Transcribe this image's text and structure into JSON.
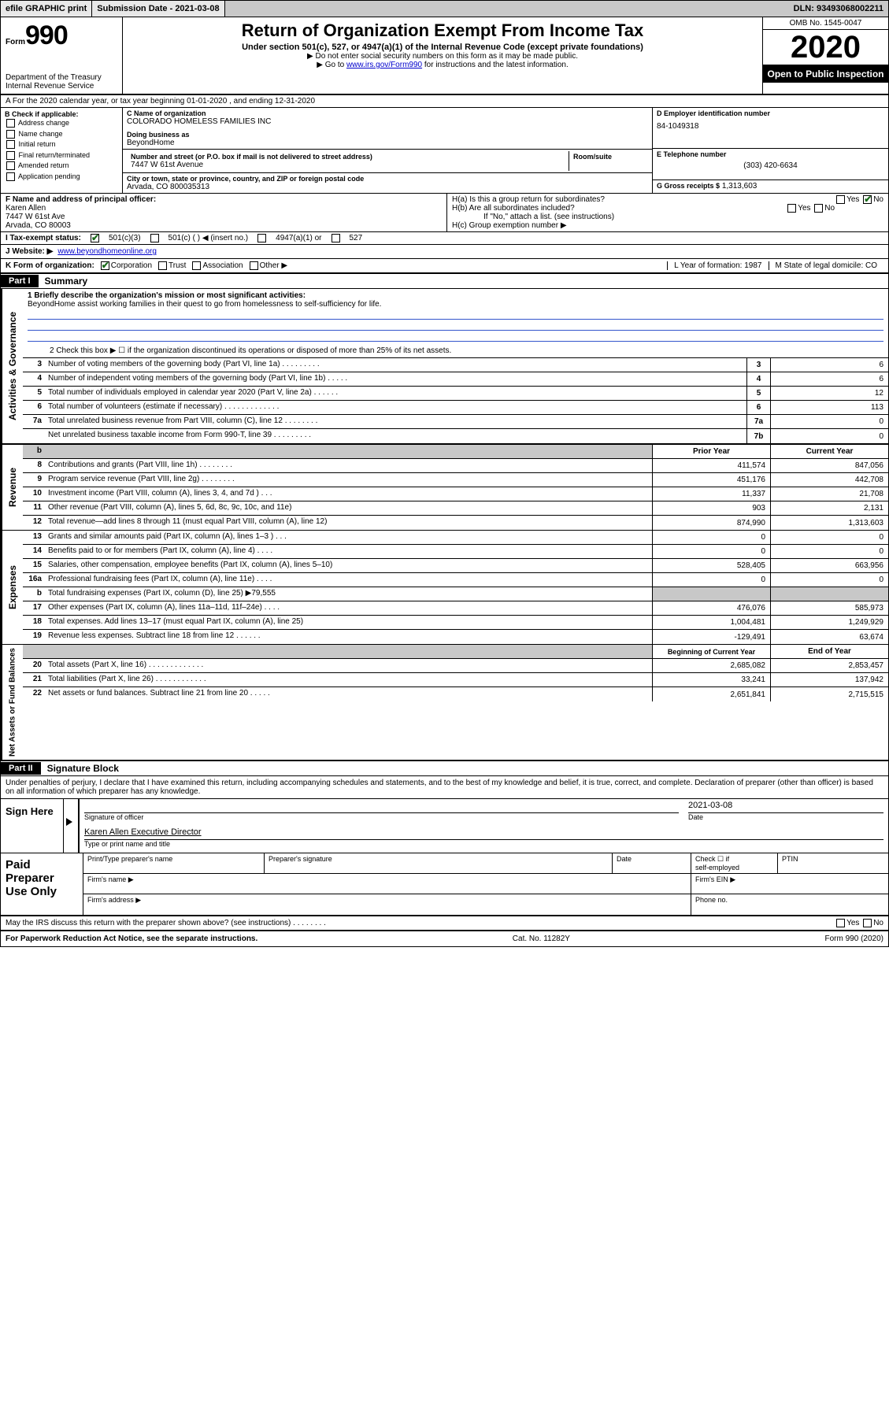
{
  "topbar": {
    "efile": "efile GRAPHIC print",
    "submission_label": "Submission Date - 2021-03-08",
    "dln": "DLN: 93493068002211"
  },
  "header": {
    "form_label": "Form",
    "form_number": "990",
    "dept": "Department of the Treasury\nInternal Revenue Service",
    "title": "Return of Organization Exempt From Income Tax",
    "subtitle": "Under section 501(c), 527, or 4947(a)(1) of the Internal Revenue Code (except private foundations)",
    "note1": "▶ Do not enter social security numbers on this form as it may be made public.",
    "note2_pre": "▶ Go to ",
    "note2_link": "www.irs.gov/Form990",
    "note2_post": " for instructions and the latest information.",
    "omb": "OMB No. 1545-0047",
    "year": "2020",
    "badge": "Open to Public Inspection"
  },
  "row_a": "A For the 2020 calendar year, or tax year beginning 01-01-2020   , and ending 12-31-2020",
  "box_b": {
    "label": "B Check if applicable:",
    "items": [
      "Address change",
      "Name change",
      "Initial return",
      "Final return/terminated",
      "Amended return",
      "Application pending"
    ]
  },
  "box_c": {
    "name_label": "C Name of organization",
    "name": "COLORADO HOMELESS FAMILIES INC",
    "dba_label": "Doing business as",
    "dba": "BeyondHome",
    "addr_label": "Number and street (or P.O. box if mail is not delivered to street address)",
    "room_label": "Room/suite",
    "addr": "7447 W 61st Avenue",
    "city_label": "City or town, state or province, country, and ZIP or foreign postal code",
    "city": "Arvada, CO  800035313"
  },
  "box_d": {
    "label": "D Employer identification number",
    "value": "84-1049318"
  },
  "box_e": {
    "label": "E Telephone number",
    "value": "(303) 420-6634"
  },
  "box_g": {
    "label": "G Gross receipts $",
    "value": "1,313,603"
  },
  "box_f": {
    "label": "F  Name and address of principal officer:",
    "name": "Karen Allen",
    "addr1": "7447 W 61st Ave",
    "addr2": "Arvada, CO  80003"
  },
  "box_h": {
    "a": "H(a)  Is this a group return for subordinates?",
    "b": "H(b)  Are all subordinates included?",
    "note": "If \"No,\" attach a list. (see instructions)",
    "c": "H(c)  Group exemption number ▶"
  },
  "row_i": {
    "label": "I   Tax-exempt status:",
    "opts": [
      "501(c)(3)",
      "501(c) (   ) ◀ (insert no.)",
      "4947(a)(1) or",
      "527"
    ]
  },
  "row_j": {
    "label": "J   Website: ▶",
    "value": "www.beyondhomeonline.org"
  },
  "row_k": {
    "label": "K Form of organization:",
    "opts": [
      "Corporation",
      "Trust",
      "Association",
      "Other ▶"
    ],
    "l": "L Year of formation: 1987",
    "m": "M State of legal domicile: CO"
  },
  "part1": {
    "tag": "Part I",
    "title": "Summary"
  },
  "summary": {
    "l1_label": "1  Briefly describe the organization's mission or most significant activities:",
    "l1_text": "BeyondHome assist working families in their quest to go from homelessness to self-sufficiency for life.",
    "l2": "2   Check this box ▶ ☐  if the organization discontinued its operations or disposed of more than 25% of its net assets.",
    "rows_single": [
      {
        "n": "3",
        "d": "Number of voting members of the governing body (Part VI, line 1a)  .  .  .  .  .  .  .  .  .",
        "b": "3",
        "v": "6"
      },
      {
        "n": "4",
        "d": "Number of independent voting members of the governing body (Part VI, line 1b)  .  .  .  .  .",
        "b": "4",
        "v": "6"
      },
      {
        "n": "5",
        "d": "Total number of individuals employed in calendar year 2020 (Part V, line 2a)  .  .  .  .  .  .",
        "b": "5",
        "v": "12"
      },
      {
        "n": "6",
        "d": "Total number of volunteers (estimate if necessary)  .  .  .  .  .  .  .  .  .  .  .  .  .",
        "b": "6",
        "v": "113"
      },
      {
        "n": "7a",
        "d": "Total unrelated business revenue from Part VIII, column (C), line 12  .  .  .  .  .  .  .  .",
        "b": "7a",
        "v": "0"
      },
      {
        "n": "",
        "d": "Net unrelated business taxable income from Form 990-T, line 39  .  .  .  .  .  .  .  .  .",
        "b": "7b",
        "v": "0"
      }
    ],
    "col_hdr": {
      "b": "b",
      "prior": "Prior Year",
      "current": "Current Year"
    },
    "revenue": [
      {
        "n": "8",
        "d": "Contributions and grants (Part VIII, line 1h)  .  .  .  .  .  .  .  .",
        "p": "411,574",
        "c": "847,056"
      },
      {
        "n": "9",
        "d": "Program service revenue (Part VIII, line 2g)  .  .  .  .  .  .  .  .",
        "p": "451,176",
        "c": "442,708"
      },
      {
        "n": "10",
        "d": "Investment income (Part VIII, column (A), lines 3, 4, and 7d )  .  .  .",
        "p": "11,337",
        "c": "21,708"
      },
      {
        "n": "11",
        "d": "Other revenue (Part VIII, column (A), lines 5, 6d, 8c, 9c, 10c, and 11e)",
        "p": "903",
        "c": "2,131"
      },
      {
        "n": "12",
        "d": "Total revenue—add lines 8 through 11 (must equal Part VIII, column (A), line 12)",
        "p": "874,990",
        "c": "1,313,603"
      }
    ],
    "expenses": [
      {
        "n": "13",
        "d": "Grants and similar amounts paid (Part IX, column (A), lines 1–3 )  .  .  .",
        "p": "0",
        "c": "0"
      },
      {
        "n": "14",
        "d": "Benefits paid to or for members (Part IX, column (A), line 4)  .  .  .  .",
        "p": "0",
        "c": "0"
      },
      {
        "n": "15",
        "d": "Salaries, other compensation, employee benefits (Part IX, column (A), lines 5–10)",
        "p": "528,405",
        "c": "663,956"
      },
      {
        "n": "16a",
        "d": "Professional fundraising fees (Part IX, column (A), line 11e)  .  .  .  .",
        "p": "0",
        "c": "0"
      },
      {
        "n": "b",
        "d": "Total fundraising expenses (Part IX, column (D), line 25) ▶79,555",
        "p": "",
        "c": "",
        "shaded": true
      },
      {
        "n": "17",
        "d": "Other expenses (Part IX, column (A), lines 11a–11d, 11f–24e)  .  .  .  .",
        "p": "476,076",
        "c": "585,973"
      },
      {
        "n": "18",
        "d": "Total expenses. Add lines 13–17 (must equal Part IX, column (A), line 25)",
        "p": "1,004,481",
        "c": "1,249,929"
      },
      {
        "n": "19",
        "d": "Revenue less expenses. Subtract line 18 from line 12  .  .  .  .  .  .",
        "p": "-129,491",
        "c": "63,674"
      }
    ],
    "net_hdr": {
      "prior": "Beginning of Current Year",
      "current": "End of Year"
    },
    "net": [
      {
        "n": "20",
        "d": "Total assets (Part X, line 16)  .  .  .  .  .  .  .  .  .  .  .  .  .",
        "p": "2,685,082",
        "c": "2,853,457"
      },
      {
        "n": "21",
        "d": "Total liabilities (Part X, line 26)  .  .  .  .  .  .  .  .  .  .  .  .",
        "p": "33,241",
        "c": "137,942"
      },
      {
        "n": "22",
        "d": "Net assets or fund balances. Subtract line 21 from line 20  .  .  .  .  .",
        "p": "2,651,841",
        "c": "2,715,515"
      }
    ],
    "side_labels": {
      "gov": "Activities & Governance",
      "rev": "Revenue",
      "exp": "Expenses",
      "net": "Net Assets or Fund Balances"
    }
  },
  "part2": {
    "tag": "Part II",
    "title": "Signature Block"
  },
  "perjury": "Under penalties of perjury, I declare that I have examined this return, including accompanying schedules and statements, and to the best of my knowledge and belief, it is true, correct, and complete. Declaration of preparer (other than officer) is based on all information of which preparer has any knowledge.",
  "sign": {
    "here": "Sign Here",
    "sig_label": "Signature of officer",
    "date": "2021-03-08",
    "date_label": "Date",
    "name": "Karen Allen  Executive Director",
    "name_label": "Type or print name and title"
  },
  "paid": {
    "title": "Paid Preparer Use Only",
    "h1": "Print/Type preparer's name",
    "h2": "Preparer's signature",
    "h3": "Date",
    "h4_a": "Check ☐ if",
    "h4_b": "self-employed",
    "h5": "PTIN",
    "firm_name": "Firm's name   ▶",
    "firm_ein": "Firm's EIN ▶",
    "firm_addr": "Firm's address ▶",
    "phone": "Phone no."
  },
  "discuss": "May the IRS discuss this return with the preparer shown above? (see instructions)   .   .   .   .   .   .   .   .",
  "footer": {
    "left": "For Paperwork Reduction Act Notice, see the separate instructions.",
    "mid": "Cat. No. 11282Y",
    "right": "Form 990 (2020)"
  },
  "yn": {
    "yes": "Yes",
    "no": "No"
  }
}
